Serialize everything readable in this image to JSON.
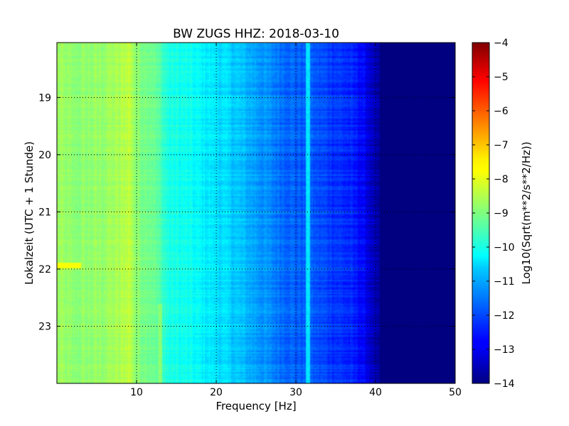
{
  "chart_data": {
    "type": "heatmap",
    "title": "BW ZUGS HHZ: 2018-03-10",
    "xlabel": "Frequency [Hz]",
    "ylabel": "Lokalzeit (UTC + 1 Stunde)",
    "xlim": [
      0,
      50
    ],
    "ylim": [
      24,
      18.04
    ],
    "xticks": [
      10,
      20,
      30,
      40,
      50
    ],
    "yticks": [
      19,
      20,
      21,
      22,
      23
    ],
    "grid": true,
    "colorbar": {
      "label": "Log10(Sqrt(m**2/s**2/Hz))",
      "range": [
        -14,
        -4
      ],
      "ticks": [
        -4,
        -5,
        -6,
        -7,
        -8,
        -9,
        -10,
        -11,
        -12,
        -13,
        -14
      ],
      "colormap": "jet"
    },
    "spectrum_profile": {
      "frequency_hz": [
        0,
        2,
        5,
        8,
        9,
        10,
        12,
        13,
        14,
        16,
        18,
        20,
        22,
        24,
        26,
        28,
        30,
        32,
        34,
        36,
        38,
        39,
        40,
        41,
        50
      ],
      "log10_amplitude": [
        -8.7,
        -8.9,
        -8.8,
        -8.6,
        -8.3,
        -8.9,
        -9.1,
        -9.5,
        -10.0,
        -10.1,
        -10.3,
        -10.5,
        -10.7,
        -11.0,
        -11.3,
        -11.6,
        -11.8,
        -11.9,
        -12.1,
        -12.3,
        -12.6,
        -13.0,
        -13.6,
        -14.0,
        -14.0
      ]
    },
    "features": [
      {
        "frequency_hz": 1.5,
        "time_h": 21.95,
        "log10_amplitude": -7.8
      },
      {
        "frequency_hz": 31.5,
        "time_h": 21.0,
        "log10_amplitude": -10.5
      },
      {
        "frequency_hz": 13.0,
        "time_h": 23.5,
        "log10_amplitude": -8.9
      }
    ]
  }
}
